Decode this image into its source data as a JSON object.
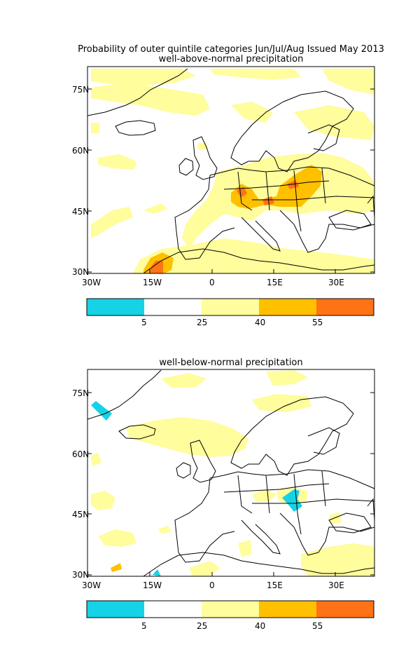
{
  "figure": {
    "main_title": "Probability of outer quintile categories Jun/Jul/Aug Issued May 2013"
  },
  "colors": {
    "cyan": "#16d2e6",
    "white": "#ffffff",
    "pale_yellow": "#fffd9c",
    "amber": "#ffc000",
    "orange": "#ff7216",
    "coast": "#000000"
  },
  "panels": [
    {
      "subtitle": "well-above-normal precipitation",
      "lat_labels": [
        "75N",
        "60N",
        "45N",
        "30N"
      ],
      "lon_labels": [
        "30W",
        "15W",
        "0",
        "15E",
        "30E"
      ],
      "colorbar_ticks": [
        "5",
        "25",
        "40",
        "55"
      ],
      "colorbar_colors": [
        "#16d2e6",
        "#ffffff",
        "#fffd9c",
        "#ffc000",
        "#ff7216"
      ]
    },
    {
      "subtitle": "well-below-normal precipitation",
      "lat_labels": [
        "75N",
        "60N",
        "45N",
        "30N"
      ],
      "lon_labels": [
        "30W",
        "15W",
        "0",
        "15E",
        "30E"
      ],
      "colorbar_ticks": [
        "5",
        "25",
        "40",
        "55"
      ],
      "colorbar_colors": [
        "#16d2e6",
        "#ffffff",
        "#fffd9c",
        "#ffc000",
        "#ff7216"
      ]
    }
  ]
}
